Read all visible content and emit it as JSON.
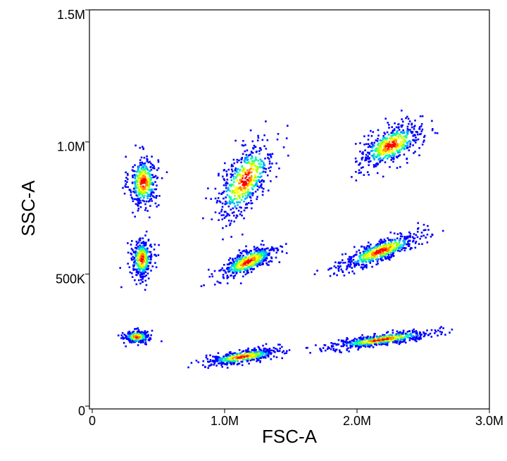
{
  "chart_data": {
    "type": "scatter",
    "style": "density-colored flow cytometry dot plot",
    "xlabel": "FSC-A",
    "ylabel": "SSC-A",
    "xlim": [
      0,
      3000000
    ],
    "ylim": [
      0,
      1500000
    ],
    "x_ticks": [
      {
        "value": 0,
        "label": "0"
      },
      {
        "value": 1000000,
        "label": "1.0M"
      },
      {
        "value": 2000000,
        "label": "2.0M"
      },
      {
        "value": 3000000,
        "label": "3.0M"
      }
    ],
    "y_ticks": [
      {
        "value": 0,
        "label": "0"
      },
      {
        "value": 500000,
        "label": "500K"
      },
      {
        "value": 1000000,
        "label": "1.0M"
      },
      {
        "value": 1500000,
        "label": "1.5M"
      }
    ],
    "density_colors": [
      "#0000ff",
      "#00aaff",
      "#00ffaa",
      "#aaff00",
      "#ffff00",
      "#ff8800",
      "#ff0000"
    ],
    "populations": [
      {
        "name": "P1",
        "center_x": 380000,
        "center_y": 850000,
        "spread_x": 55000,
        "spread_y": 50000,
        "slope": 0,
        "count": 380
      },
      {
        "name": "P2",
        "center_x": 1150000,
        "center_y": 860000,
        "spread_x": 110000,
        "spread_y": 60000,
        "slope": 0.45,
        "count": 520
      },
      {
        "name": "P3",
        "center_x": 2250000,
        "center_y": 990000,
        "spread_x": 120000,
        "spread_y": 35000,
        "slope": 0.2,
        "count": 480
      },
      {
        "name": "P4",
        "center_x": 370000,
        "center_y": 560000,
        "spread_x": 40000,
        "spread_y": 38000,
        "slope": 0,
        "count": 330
      },
      {
        "name": "P5",
        "center_x": 1170000,
        "center_y": 550000,
        "spread_x": 110000,
        "spread_y": 22000,
        "slope": 0.2,
        "count": 470
      },
      {
        "name": "P6",
        "center_x": 2170000,
        "center_y": 590000,
        "spread_x": 150000,
        "spread_y": 20000,
        "slope": 0.18,
        "count": 540
      },
      {
        "name": "P7",
        "center_x": 330000,
        "center_y": 265000,
        "spread_x": 50000,
        "spread_y": 12000,
        "slope": 0,
        "count": 240
      },
      {
        "name": "P8",
        "center_x": 1130000,
        "center_y": 190000,
        "spread_x": 140000,
        "spread_y": 12000,
        "slope": 0.07,
        "count": 420
      },
      {
        "name": "P9",
        "center_x": 2180000,
        "center_y": 255000,
        "spread_x": 200000,
        "spread_y": 10000,
        "slope": 0.07,
        "count": 560
      }
    ]
  }
}
